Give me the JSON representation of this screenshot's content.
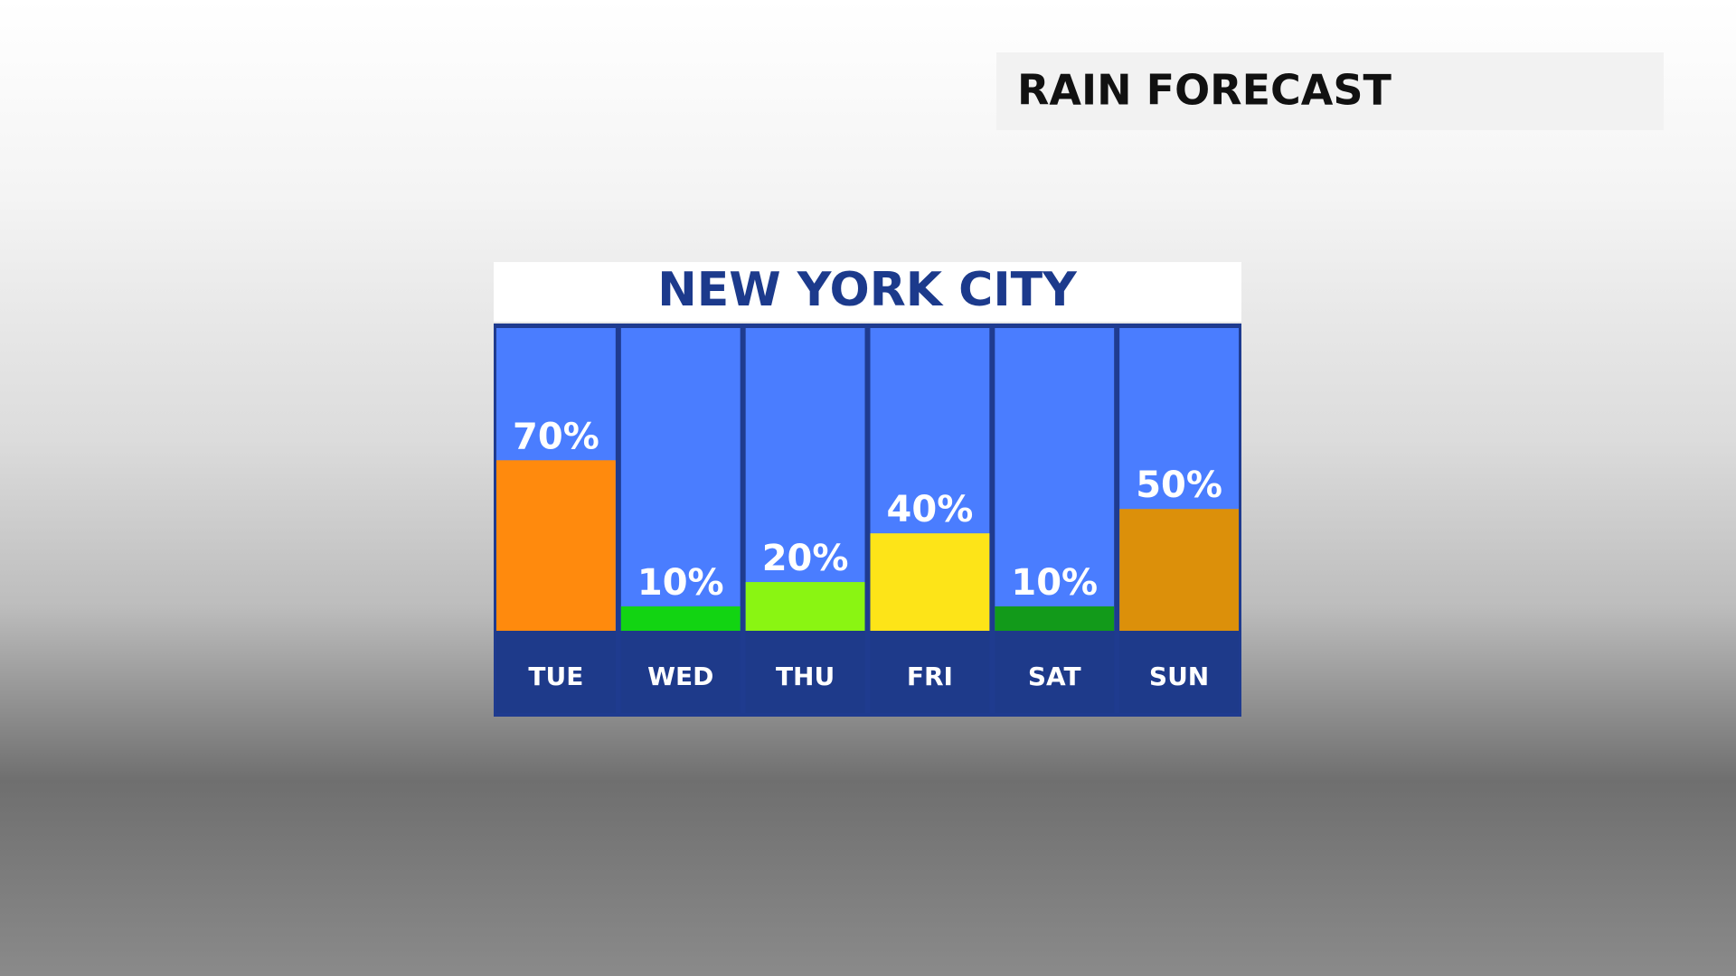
{
  "header": {
    "title": "RAIN FORECAST"
  },
  "chart_data": {
    "type": "bar",
    "title": "NEW YORK CITY",
    "categories": [
      "TUE",
      "WED",
      "THU",
      "FRI",
      "SAT",
      "SUN"
    ],
    "values": [
      70,
      10,
      20,
      40,
      10,
      50
    ],
    "value_labels": [
      "70%",
      "10%",
      "20%",
      "40%",
      "10%",
      "50%"
    ],
    "colors": [
      "#ff8a0d",
      "#12d412",
      "#8af512",
      "#fde418",
      "#129a1a",
      "#dc900a"
    ],
    "ylim": [
      0,
      125
    ]
  }
}
